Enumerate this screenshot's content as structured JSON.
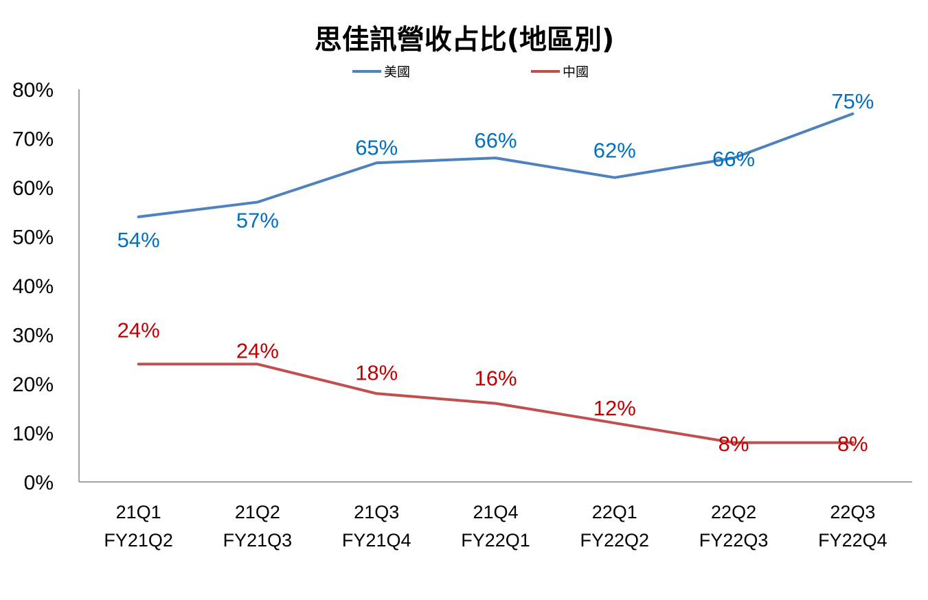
{
  "chart_data": {
    "type": "line",
    "title": "思佳訊營收占比(地區別)",
    "categories": [
      [
        "21Q1",
        "FY21Q2"
      ],
      [
        "21Q2",
        "FY21Q3"
      ],
      [
        "21Q3",
        "FY21Q4"
      ],
      [
        "21Q4",
        "FY22Q1"
      ],
      [
        "22Q1",
        "FY22Q2"
      ],
      [
        "22Q2",
        "FY22Q3"
      ],
      [
        "22Q3",
        "FY22Q4"
      ]
    ],
    "series": [
      {
        "name": "美國",
        "values": [
          54,
          57,
          65,
          66,
          62,
          66,
          75
        ],
        "labels": [
          "54%",
          "57%",
          "65%",
          "66%",
          "62%",
          "66%",
          "75%"
        ],
        "line_color": "#4f81bd",
        "label_color": "#0070c0"
      },
      {
        "name": "中國",
        "values": [
          24,
          24,
          18,
          16,
          12,
          8,
          8
        ],
        "labels": [
          "24%",
          "24%",
          "18%",
          "16%",
          "12%",
          "8%",
          "8%"
        ],
        "line_color": "#c0504d",
        "label_color": "#c00000"
      }
    ],
    "y_ticks": [
      "0%",
      "10%",
      "20%",
      "30%",
      "40%",
      "50%",
      "60%",
      "70%",
      "80%"
    ],
    "ylim": [
      0,
      80
    ],
    "grid": false,
    "legend_position": "top"
  }
}
